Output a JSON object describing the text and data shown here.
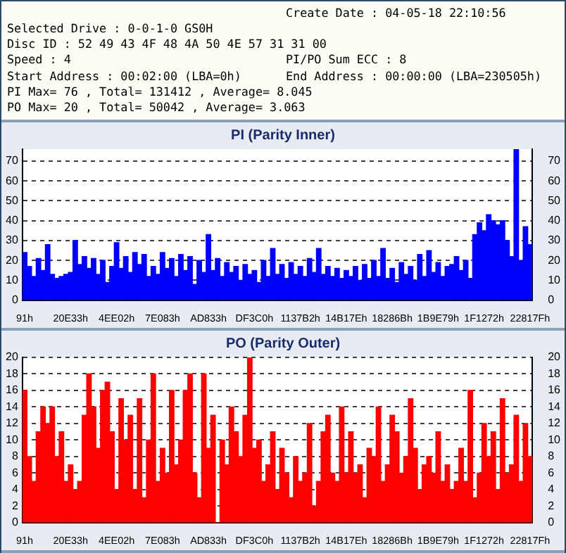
{
  "chart_data": [
    {
      "type": "other",
      "annotations": [
        "Create Date : 04-05-18 22:10:56",
        "Selected Drive : 0-0-1-0 GS0H",
        "Disc ID : 52 49 43 4F 48 4A 50 4E 57 31 31 00",
        "Speed : 4",
        "PI/PO Sum ECC : 8",
        "Start Address : 00:02:00 (LBA=0h)",
        "End Address : 00:00:00 (LBA=230505h)",
        "PI Max= 76 , Total= 131412 , Average= 8.045",
        "PO Max= 20 , Total= 50042 , Average= 3.063"
      ]
    },
    {
      "type": "bar",
      "title": "PI (Parity Inner)",
      "categories": [
        "91h",
        null,
        null,
        null,
        null,
        null,
        null,
        null,
        null,
        null,
        "20E33h",
        null,
        null,
        null,
        null,
        null,
        null,
        null,
        null,
        null,
        "4EE02h",
        null,
        null,
        null,
        null,
        null,
        null,
        null,
        null,
        null,
        "7E083h",
        null,
        null,
        null,
        null,
        null,
        null,
        null,
        null,
        null,
        "AD833h",
        null,
        null,
        null,
        null,
        null,
        null,
        null,
        null,
        null,
        "DF3C0h",
        null,
        null,
        null,
        null,
        null,
        null,
        null,
        null,
        null,
        "1137B2h",
        null,
        null,
        null,
        null,
        null,
        null,
        null,
        null,
        null,
        "14B17Eh",
        null,
        null,
        null,
        null,
        null,
        null,
        null,
        null,
        null,
        "18286Bh",
        null,
        null,
        null,
        null,
        null,
        null,
        null,
        null,
        null,
        "1B9E79h",
        null,
        null,
        null,
        null,
        null,
        null,
        null,
        null,
        null,
        "1F1272h",
        null,
        null,
        null,
        null,
        null,
        null,
        null,
        null,
        null,
        "22817Fh"
      ],
      "values": [
        24,
        17,
        12,
        21,
        15,
        28,
        13,
        11,
        12,
        13,
        14,
        30,
        18,
        22,
        16,
        21,
        13,
        20,
        9,
        17,
        29,
        16,
        22,
        14,
        24,
        18,
        23,
        12,
        17,
        13,
        24,
        16,
        21,
        12,
        23,
        15,
        22,
        8,
        20,
        14,
        33,
        15,
        21,
        12,
        19,
        14,
        17,
        10,
        18,
        13,
        15,
        9,
        20,
        12,
        26,
        13,
        18,
        11,
        19,
        13,
        17,
        12,
        21,
        14,
        26,
        13,
        17,
        12,
        16,
        11,
        15,
        12,
        17,
        10,
        18,
        11,
        20,
        12,
        26,
        11,
        16,
        9,
        19,
        13,
        17,
        10,
        23,
        12,
        25,
        14,
        19,
        12,
        17,
        18,
        22,
        15,
        20,
        11,
        33,
        39,
        35,
        43,
        40,
        38,
        40,
        30,
        22,
        76,
        20,
        37,
        28
      ],
      "color": "#0000ff",
      "ylim": [
        0,
        76
      ],
      "yticks": [
        0,
        10,
        20,
        30,
        40,
        50,
        60,
        70
      ],
      "y2lim": [
        0,
        76
      ],
      "y2ticks": [
        0,
        10,
        20,
        30,
        40,
        50,
        60,
        70
      ],
      "grid": "y"
    },
    {
      "type": "bar",
      "title": "PO (Parity Outer)",
      "categories": [
        "91h",
        null,
        null,
        null,
        null,
        null,
        null,
        null,
        null,
        null,
        "20E33h",
        null,
        null,
        null,
        null,
        null,
        null,
        null,
        null,
        null,
        "4EE02h",
        null,
        null,
        null,
        null,
        null,
        null,
        null,
        null,
        null,
        "7E083h",
        null,
        null,
        null,
        null,
        null,
        null,
        null,
        null,
        null,
        "AD833h",
        null,
        null,
        null,
        null,
        null,
        null,
        null,
        null,
        null,
        "DF3C0h",
        null,
        null,
        null,
        null,
        null,
        null,
        null,
        null,
        null,
        "1137B2h",
        null,
        null,
        null,
        null,
        null,
        null,
        null,
        null,
        null,
        "14B17Eh",
        null,
        null,
        null,
        null,
        null,
        null,
        null,
        null,
        null,
        "18286Bh",
        null,
        null,
        null,
        null,
        null,
        null,
        null,
        null,
        null,
        "1B9E79h",
        null,
        null,
        null,
        null,
        null,
        null,
        null,
        null,
        null,
        "1F1272h",
        null,
        null,
        null,
        null,
        null,
        null,
        null,
        null,
        null,
        "22817Fh"
      ],
      "values": [
        16,
        8,
        5,
        11,
        14,
        12,
        14,
        8,
        11,
        5,
        7,
        4,
        5,
        13,
        18,
        14,
        9,
        16,
        17,
        11,
        4,
        15,
        10,
        13,
        4,
        15,
        3,
        10,
        18,
        5,
        9,
        6,
        16,
        7,
        10,
        16,
        18,
        6,
        3,
        18,
        9,
        13,
        0,
        10,
        7,
        14,
        11,
        8,
        13,
        20,
        9,
        10,
        5,
        7,
        11,
        4,
        9,
        6,
        3,
        8,
        5,
        6,
        12,
        2,
        5,
        11,
        13,
        6,
        5,
        14,
        6,
        11,
        6,
        7,
        3,
        9,
        8,
        14,
        5,
        7,
        13,
        11,
        6,
        8,
        15,
        9,
        4,
        7,
        8,
        6,
        11,
        5,
        7,
        4,
        5,
        9,
        5,
        16,
        3,
        6,
        12,
        8,
        11,
        4,
        15,
        6,
        7,
        13,
        5,
        12,
        8
      ],
      "color": "#ff0000",
      "ylim": [
        0,
        20
      ],
      "yticks": [
        0,
        2,
        4,
        6,
        8,
        10,
        12,
        14,
        16,
        18,
        20
      ],
      "y2lim": [
        0,
        20
      ],
      "y2ticks": [
        0,
        2,
        4,
        6,
        8,
        10,
        12,
        14,
        16,
        18,
        20
      ],
      "grid": "y"
    }
  ]
}
